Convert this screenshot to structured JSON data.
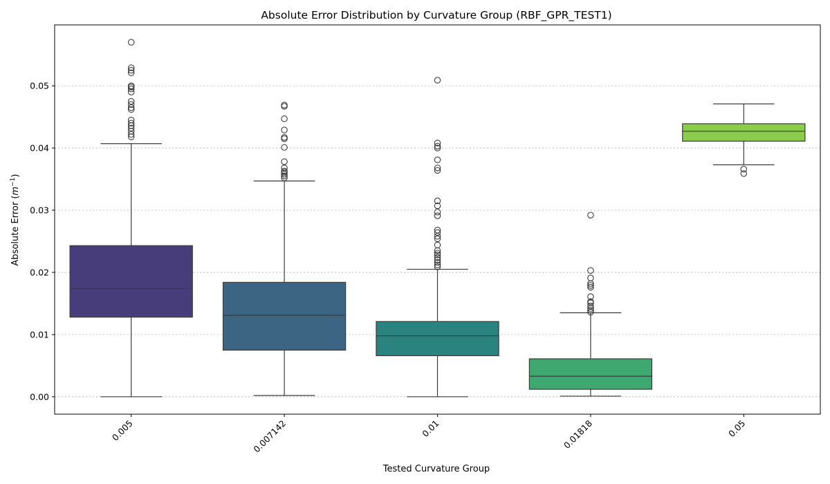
{
  "chart_data": {
    "type": "box",
    "title": "Absolute Error Distribution by Curvature Group (RBF_GPR_TEST1)",
    "xlabel": "Tested Curvature Group",
    "ylabel_main": "Absolute Error (",
    "ylabel_var": "m",
    "ylabel_sup": "−1",
    "ylabel_close": ")",
    "ylim": [
      -0.0028,
      0.0598
    ],
    "yticks": [
      0.0,
      0.01,
      0.02,
      0.03,
      0.04,
      0.05
    ],
    "ytick_labels": [
      "0.00",
      "0.01",
      "0.02",
      "0.03",
      "0.04",
      "0.05"
    ],
    "grid": "y-dotted",
    "categories": [
      "0.005",
      "0.007142",
      "0.01",
      "0.01818",
      "0.05"
    ],
    "groups": [
      {
        "category": "0.005",
        "color": "#483d7b",
        "whisker_low": 0.0,
        "q1": 0.0128,
        "median": 0.0174,
        "q3": 0.0243,
        "whisker_high": 0.0407,
        "outliers": [
          0.0418,
          0.0422,
          0.0427,
          0.0432,
          0.0436,
          0.044,
          0.0445,
          0.0462,
          0.0465,
          0.047,
          0.0475,
          0.049,
          0.0495,
          0.0498,
          0.05,
          0.0521,
          0.0525,
          0.0529,
          0.057
        ]
      },
      {
        "category": "0.007142",
        "color": "#3c6584",
        "whisker_low": 0.0002,
        "q1": 0.0075,
        "median": 0.0131,
        "q3": 0.0184,
        "whisker_high": 0.0347,
        "outliers": [
          0.0352,
          0.0355,
          0.0358,
          0.0361,
          0.0363,
          0.0368,
          0.0378,
          0.0401,
          0.0415,
          0.0417,
          0.0429,
          0.0447,
          0.0467,
          0.0469
        ]
      },
      {
        "category": "0.01",
        "color": "#2a837e",
        "whisker_low": 0.0,
        "q1": 0.0066,
        "median": 0.0098,
        "q3": 0.0121,
        "whisker_high": 0.0205,
        "outliers": [
          0.0209,
          0.0212,
          0.0216,
          0.022,
          0.0224,
          0.0228,
          0.0231,
          0.0235,
          0.0244,
          0.0254,
          0.0258,
          0.0264,
          0.0268,
          0.0291,
          0.0297,
          0.0307,
          0.0315,
          0.0364,
          0.0368,
          0.0381,
          0.04,
          0.0403,
          0.0408,
          0.0509
        ]
      },
      {
        "category": "0.01818",
        "color": "#3ea870",
        "whisker_low": 0.0001,
        "q1": 0.0012,
        "median": 0.0033,
        "q3": 0.0061,
        "whisker_high": 0.0135,
        "outliers": [
          0.0136,
          0.0139,
          0.0142,
          0.0146,
          0.0151,
          0.0153,
          0.0161,
          0.0176,
          0.0179,
          0.0182,
          0.0191,
          0.0203,
          0.0292
        ]
      },
      {
        "category": "0.05",
        "color": "#8ccc4c",
        "whisker_low": 0.0373,
        "q1": 0.0411,
        "median": 0.0427,
        "q3": 0.0439,
        "whisker_high": 0.0471,
        "outliers": [
          0.0359,
          0.0366
        ]
      }
    ]
  }
}
